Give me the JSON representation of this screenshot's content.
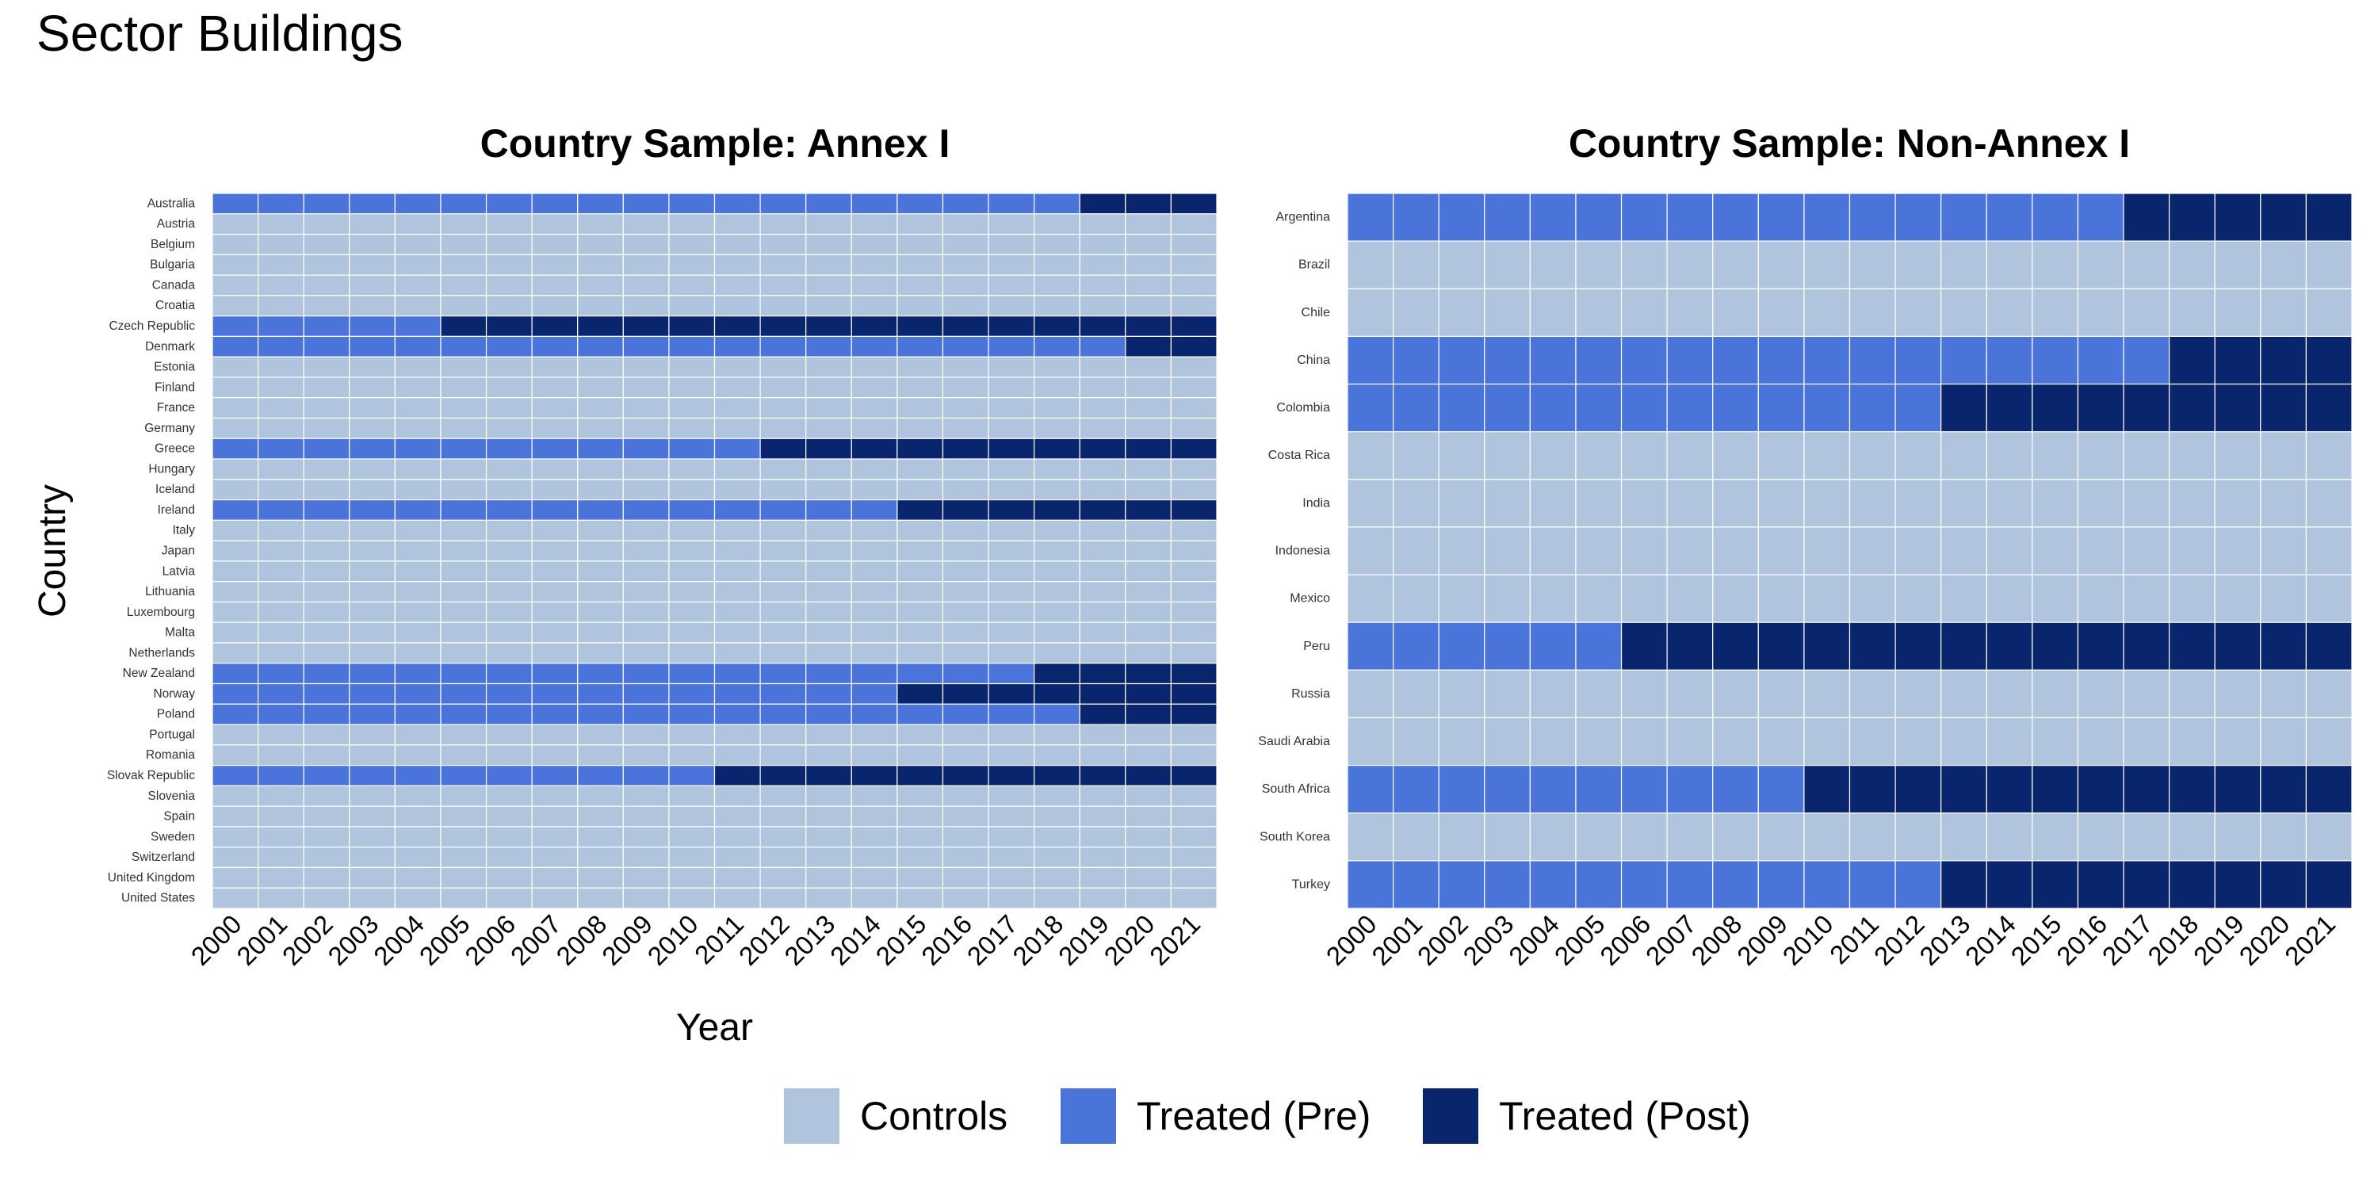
{
  "figure_title": "Sector Buildings",
  "colors": {
    "Controls": "#b0c4de",
    "Treated (Pre)": "#4a74d9",
    "Treated (Post)": "#08256e"
  },
  "legend": [
    "Controls",
    "Treated (Pre)",
    "Treated (Post)"
  ],
  "chart_data": [
    {
      "type": "heatmap",
      "title": "Country Sample: Annex I",
      "xlabel": "Year",
      "ylabel": "Country",
      "years": [
        "2000",
        "2001",
        "2002",
        "2003",
        "2004",
        "2005",
        "2006",
        "2007",
        "2008",
        "2009",
        "2010",
        "2011",
        "2012",
        "2013",
        "2014",
        "2015",
        "2016",
        "2017",
        "2018",
        "2019",
        "2020",
        "2021"
      ],
      "rows": [
        {
          "country": "Australia",
          "status": "treated",
          "treatment_year": "2019"
        },
        {
          "country": "Austria",
          "status": "control"
        },
        {
          "country": "Belgium",
          "status": "control"
        },
        {
          "country": "Bulgaria",
          "status": "control"
        },
        {
          "country": "Canada",
          "status": "control"
        },
        {
          "country": "Croatia",
          "status": "control"
        },
        {
          "country": "Czech Republic",
          "status": "treated",
          "treatment_year": "2005"
        },
        {
          "country": "Denmark",
          "status": "treated",
          "treatment_year": "2020"
        },
        {
          "country": "Estonia",
          "status": "control"
        },
        {
          "country": "Finland",
          "status": "control"
        },
        {
          "country": "France",
          "status": "control"
        },
        {
          "country": "Germany",
          "status": "control"
        },
        {
          "country": "Greece",
          "status": "treated",
          "treatment_year": "2012"
        },
        {
          "country": "Hungary",
          "status": "control"
        },
        {
          "country": "Iceland",
          "status": "control"
        },
        {
          "country": "Ireland",
          "status": "treated",
          "treatment_year": "2015"
        },
        {
          "country": "Italy",
          "status": "control"
        },
        {
          "country": "Japan",
          "status": "control"
        },
        {
          "country": "Latvia",
          "status": "control"
        },
        {
          "country": "Lithuania",
          "status": "control"
        },
        {
          "country": "Luxembourg",
          "status": "control"
        },
        {
          "country": "Malta",
          "status": "control"
        },
        {
          "country": "Netherlands",
          "status": "control"
        },
        {
          "country": "New Zealand",
          "status": "treated",
          "treatment_year": "2018"
        },
        {
          "country": "Norway",
          "status": "treated",
          "treatment_year": "2015"
        },
        {
          "country": "Poland",
          "status": "treated",
          "treatment_year": "2019"
        },
        {
          "country": "Portugal",
          "status": "control"
        },
        {
          "country": "Romania",
          "status": "control"
        },
        {
          "country": "Slovak Republic",
          "status": "treated",
          "treatment_year": "2011"
        },
        {
          "country": "Slovenia",
          "status": "control"
        },
        {
          "country": "Spain",
          "status": "control"
        },
        {
          "country": "Sweden",
          "status": "control"
        },
        {
          "country": "Switzerland",
          "status": "control"
        },
        {
          "country": "United Kingdom",
          "status": "control"
        },
        {
          "country": "United States",
          "status": "control"
        }
      ]
    },
    {
      "type": "heatmap",
      "title": "Country Sample: Non-Annex I",
      "xlabel": "",
      "ylabel": "",
      "years": [
        "2000",
        "2001",
        "2002",
        "2003",
        "2004",
        "2005",
        "2006",
        "2007",
        "2008",
        "2009",
        "2010",
        "2011",
        "2012",
        "2013",
        "2014",
        "2015",
        "2016",
        "2017",
        "2018",
        "2019",
        "2020",
        "2021"
      ],
      "rows": [
        {
          "country": "Argentina",
          "status": "treated",
          "treatment_year": "2017"
        },
        {
          "country": "Brazil",
          "status": "control"
        },
        {
          "country": "Chile",
          "status": "control"
        },
        {
          "country": "China",
          "status": "treated",
          "treatment_year": "2018"
        },
        {
          "country": "Colombia",
          "status": "treated",
          "treatment_year": "2013"
        },
        {
          "country": "Costa Rica",
          "status": "control"
        },
        {
          "country": "India",
          "status": "control"
        },
        {
          "country": "Indonesia",
          "status": "control"
        },
        {
          "country": "Mexico",
          "status": "control"
        },
        {
          "country": "Peru",
          "status": "treated",
          "treatment_year": "2006"
        },
        {
          "country": "Russia",
          "status": "control"
        },
        {
          "country": "Saudi Arabia",
          "status": "control"
        },
        {
          "country": "South Africa",
          "status": "treated",
          "treatment_year": "2010"
        },
        {
          "country": "South Korea",
          "status": "control"
        },
        {
          "country": "Turkey",
          "status": "treated",
          "treatment_year": "2013"
        }
      ]
    }
  ]
}
